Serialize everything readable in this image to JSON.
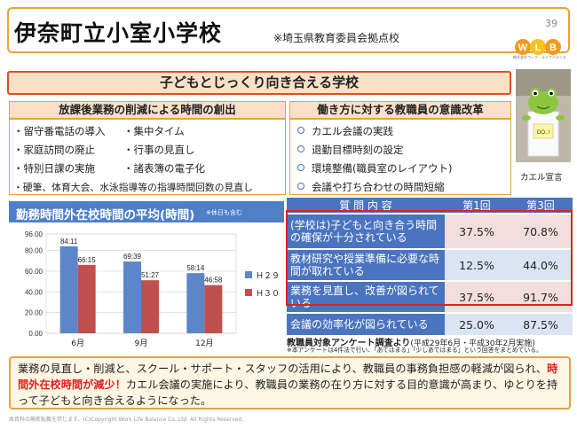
{
  "header": {
    "title": "伊奈町立小室小学校",
    "subtitle": "※埼玉県教育委員会拠点校",
    "page_number": "39",
    "logo_letters": [
      "W",
      "L",
      "B"
    ],
    "logo_text": "株式会社ワーク・ライフバランス"
  },
  "banner": {
    "text": "子どもとじっくり向き合える学校"
  },
  "left_panel": {
    "title": "放課後業務の削減による時間の創出",
    "rows": [
      [
        "・留守番電話の導入",
        "・集中タイム"
      ],
      [
        "・家庭訪問の廃止",
        "・行事の見直し"
      ],
      [
        "・特別日課の実施",
        "・諸表簿の電子化"
      ],
      [
        "・硬筆、体育大会、水泳指導等の指導時間回数の見直し",
        ""
      ]
    ]
  },
  "right_panel": {
    "title": "働き方に対する教職員の意識改革",
    "items": [
      "カエル会議の実践",
      "退勤目標時刻の設定",
      "環境整備(職員室のレイアウト)",
      "会議や打ち合わせの時間短縮"
    ]
  },
  "photo": {
    "caption": "カエル宣言",
    "board_label": "DO..!"
  },
  "chart_data": {
    "type": "bar",
    "title": "勤務時間外在校時間の平均(時間)",
    "note": "※休日も含む",
    "categories": [
      "6月",
      "9月",
      "12月"
    ],
    "series": [
      {
        "name": "Ｈ２９",
        "values": [
          84.11,
          69.39,
          58.14
        ],
        "labels": [
          "84:11",
          "69:39",
          "58:14"
        ],
        "color": "#5b86c8"
      },
      {
        "name": "Ｈ３０",
        "values": [
          66.15,
          51.27,
          46.58
        ],
        "labels": [
          "66:15",
          "51:27",
          "46:58"
        ],
        "color": "#c0504d"
      }
    ],
    "yticks": [
      "0.00",
      "20.00",
      "40.00",
      "60.00",
      "80.00",
      "96.00"
    ],
    "ylim": [
      0,
      96
    ],
    "legend": "right",
    "grid": true
  },
  "table": {
    "headers": [
      "質 問 内 容",
      "第1回",
      "第3回"
    ],
    "rows": [
      {
        "q": "(学校は)子どもと向き合う時間の確保が十分されている",
        "r1": "37.5%",
        "r3": "70.8%",
        "highlight": true
      },
      {
        "q": "教材研究や授業準備に必要な時間が取れている",
        "r1": "12.5%",
        "r3": "44.0%",
        "highlight": false
      },
      {
        "q": "業務を見直し、改善が図られている",
        "r1": "37.5%",
        "r3": "91.7%",
        "highlight": true
      },
      {
        "q": "会議の効率化が図られている",
        "r1": "25.0%",
        "r3": "87.5%",
        "highlight": false
      }
    ],
    "survey_title": "教職員対象アンケート調査より",
    "survey_dates": "(平成29年6月・平成30年2月実施)",
    "survey_note": "※本アンケートは4件法で行い、「あてはまる」「少しあてはまる」という回答をまとめている。"
  },
  "summary": {
    "part1": "業務の見直し・削減と、スクール・サポート・スタッフの活用により、教職員の事務負担感の軽減が図られ、",
    "highlight": "時間外在校時間が減少！",
    "part2": "カエル会議の実施により、教職員の業務の在り方に対する目的意識が高まり、ゆとりを持って子どもと向き合えるようになった。"
  },
  "footer": {
    "text": "本資料の無断転載を禁じます。(C)Copyright Work Life Balance Co.,Ltd. All Rights Reserved."
  }
}
